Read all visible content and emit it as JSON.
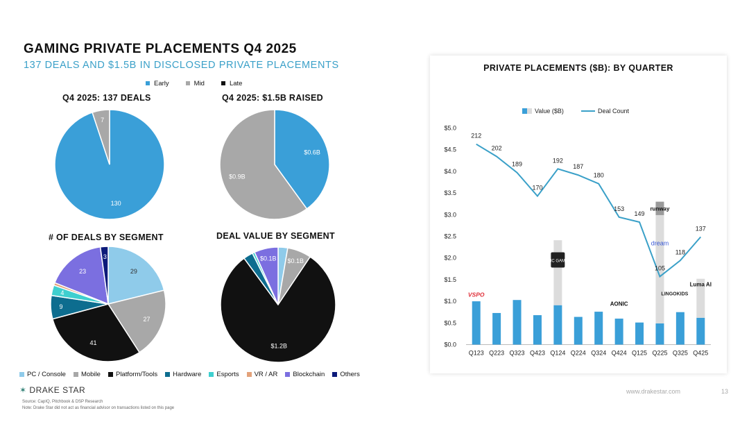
{
  "header": {
    "title": "GAMING PRIVATE PLACEMENTS Q4 2025",
    "subtitle": "137 DEALS AND $1.5B IN DISCLOSED PRIVATE PLACEMENTS"
  },
  "stage_legend": [
    {
      "label": "Early",
      "color": "#3a9fd8"
    },
    {
      "label": "Mid",
      "color": "#a8a8a8"
    },
    {
      "label": "Late",
      "color": "#111111"
    }
  ],
  "segment_legend": [
    {
      "label": "PC / Console",
      "color": "#8fcbea"
    },
    {
      "label": "Mobile",
      "color": "#a8a8a8"
    },
    {
      "label": "Platform/Tools",
      "color": "#111111"
    },
    {
      "label": "Hardware",
      "color": "#0d6d8f"
    },
    {
      "label": "Esports",
      "color": "#3fcfcf"
    },
    {
      "label": "VR / AR",
      "color": "#e3a27a"
    },
    {
      "label": "Blockchain",
      "color": "#7b6fe0"
    },
    {
      "label": "Others",
      "color": "#0c1a7a"
    }
  ],
  "chart_data": [
    {
      "type": "pie",
      "title": "Q4 2025: 137 DEALS",
      "slices": [
        {
          "label": "Early",
          "value": 130,
          "color": "#3a9fd8",
          "text": "130"
        },
        {
          "label": "Mid",
          "value": 7,
          "color": "#a8a8a8",
          "text": "7"
        }
      ]
    },
    {
      "type": "pie",
      "title": "Q4 2025: $1.5B RAISED",
      "slices": [
        {
          "label": "Early",
          "value": 0.6,
          "color": "#3a9fd8",
          "text": "$0.6B"
        },
        {
          "label": "Mid",
          "value": 0.9,
          "color": "#a8a8a8",
          "text": "$0.9B"
        }
      ]
    },
    {
      "type": "pie",
      "title": "# OF DEALS BY SEGMENT",
      "slices": [
        {
          "label": "PC / Console",
          "value": 29,
          "color": "#8fcbea",
          "text": "29"
        },
        {
          "label": "Mobile",
          "value": 27,
          "color": "#a8a8a8",
          "text": "27"
        },
        {
          "label": "Platform/Tools",
          "value": 41,
          "color": "#111111",
          "text": "41"
        },
        {
          "label": "Hardware",
          "value": 9,
          "color": "#0d6d8f",
          "text": "9"
        },
        {
          "label": "Esports",
          "value": 4,
          "color": "#3fcfcf",
          "text": "4"
        },
        {
          "label": "VR / AR",
          "value": 1,
          "color": "#e3a27a",
          "text": ""
        },
        {
          "label": "Blockchain",
          "value": 23,
          "color": "#7b6fe0",
          "text": "23"
        },
        {
          "label": "Others",
          "value": 3,
          "color": "#0c1a7a",
          "text": "3"
        }
      ]
    },
    {
      "type": "pie",
      "title": "DEAL VALUE BY SEGMENT",
      "slices": [
        {
          "label": "PC / Console",
          "value": 0.04,
          "color": "#8fcbea",
          "text": ""
        },
        {
          "label": "Mobile",
          "value": 0.1,
          "color": "#a8a8a8",
          "text": "$0.1B"
        },
        {
          "label": "Platform/Tools",
          "value": 1.2,
          "color": "#111111",
          "text": "$1.2B"
        },
        {
          "label": "Hardware",
          "value": 0.04,
          "color": "#0d6d8f",
          "text": ""
        },
        {
          "label": "Esports",
          "value": 0.01,
          "color": "#3fcfcf",
          "text": ""
        },
        {
          "label": "Blockchain",
          "value": 0.1,
          "color": "#7b6fe0",
          "text": "$0.1B"
        }
      ]
    },
    {
      "type": "bar",
      "title": "PRIVATE PLACEMENTS ($B): BY QUARTER",
      "categories": [
        "Q123",
        "Q223",
        "Q323",
        "Q423",
        "Q124",
        "Q224",
        "Q324",
        "Q424",
        "Q125",
        "Q225",
        "Q325",
        "Q425"
      ],
      "series": [
        {
          "name": "Value ($B)",
          "type": "bar",
          "color": "#3a9fd8",
          "values": [
            1.0,
            0.73,
            1.03,
            0.68,
            0.91,
            0.64,
            0.76,
            0.6,
            0.51,
            0.49,
            0.75,
            0.62
          ]
        },
        {
          "name": "",
          "type": "bar-stack",
          "color": "#dcdcdc",
          "values": [
            0,
            0,
            0,
            0,
            1.5,
            0,
            0,
            0,
            0,
            2.5,
            0,
            0.9
          ]
        },
        {
          "name": "",
          "type": "bar-stack",
          "color": "#9a9a9a",
          "values": [
            0,
            0,
            0,
            0,
            0,
            0,
            0,
            0,
            0,
            0.31,
            0,
            0
          ]
        },
        {
          "name": "Deal Count",
          "type": "line",
          "color": "#3aa0c8",
          "values": [
            212,
            202,
            189,
            170,
            192,
            187,
            180,
            153,
            149,
            105,
            118,
            137
          ]
        }
      ],
      "ylim": [
        0,
        5.0
      ],
      "yticks": [
        "$0.0",
        "$0.5",
        "$1.0",
        "$1.5",
        "$2.0",
        "$2.5",
        "$3.0",
        "$3.5",
        "$4.0",
        "$4.5",
        "$5.0"
      ],
      "deal_count_range": [
        50,
        225
      ],
      "annotations": [
        "VSPO",
        "EPIC GAMES",
        "AONIC",
        "runway",
        "dream",
        "LINGOKIDS",
        "Luma AI"
      ],
      "legend": "top"
    }
  ],
  "footer": {
    "logo": "DRAKE STAR",
    "source": "Source: CapIQ, Pitchbook & DSP Research",
    "note": "Note: Drake Star did not act as financial advisor on transactions listed on this page",
    "url": "www.drakestar.com",
    "page": "13"
  }
}
